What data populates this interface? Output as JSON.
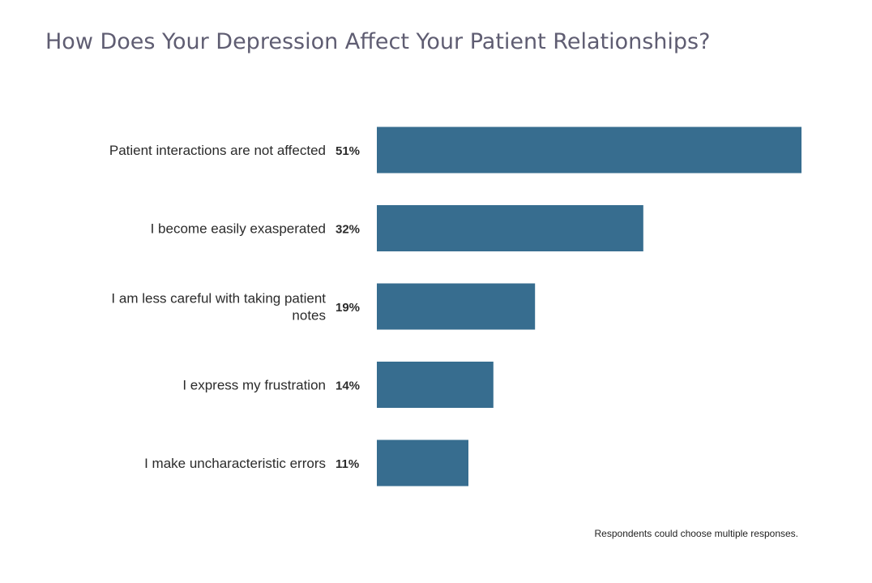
{
  "title": "How Does Your Depression Affect Your Patient Relationships?",
  "footnote": "Respondents could choose multiple responses.",
  "colors": {
    "bar": "#376d8f",
    "title": "#5f5d72",
    "text": "#2b2b2b"
  },
  "chart_data": {
    "type": "bar",
    "orientation": "horizontal",
    "title": "How Does Your Depression Affect Your Patient Relationships?",
    "categories": [
      [
        "Patient interactions are not affected"
      ],
      [
        "I become easily exasperated"
      ],
      [
        "I am less careful with taking patient",
        "notes"
      ],
      [
        "I express my frustration"
      ],
      [
        "I make uncharacteristic errors"
      ]
    ],
    "values": [
      51,
      32,
      19,
      14,
      11
    ],
    "value_labels": [
      "51%",
      "32%",
      "19%",
      "14%",
      "11%"
    ],
    "unit": "%",
    "grid": false,
    "legend": "none"
  }
}
